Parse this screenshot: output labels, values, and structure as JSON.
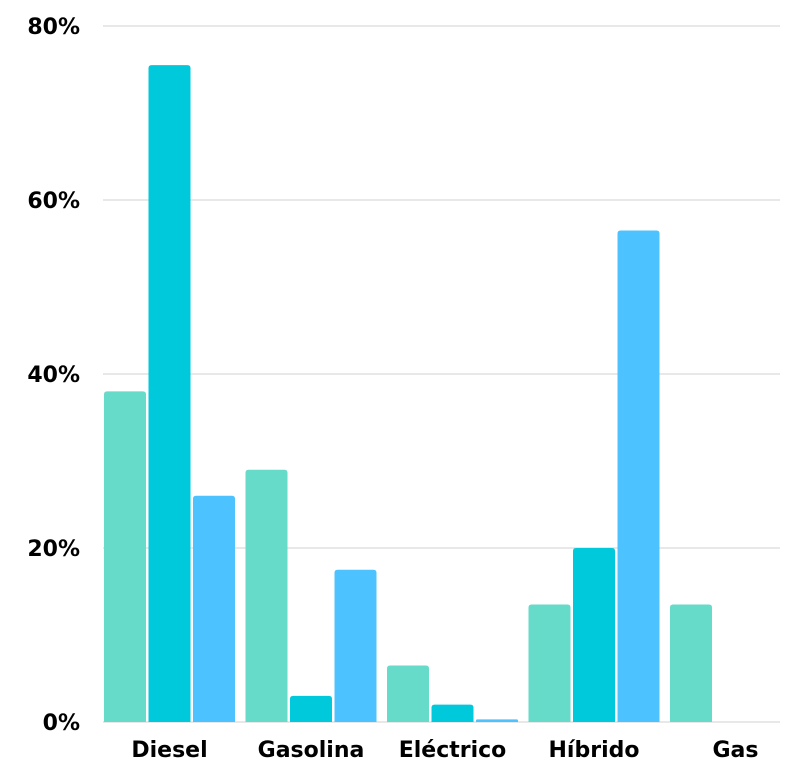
{
  "chart_data": {
    "type": "bar",
    "categories": [
      "Diesel",
      "Gasolina",
      "Eléctrico",
      "Híbrido",
      "Gas"
    ],
    "series": [
      {
        "color": "#66dbc9",
        "values": [
          38,
          29,
          6.5,
          13.5,
          13.5
        ]
      },
      {
        "color": "#00c9dc",
        "values": [
          75.5,
          3,
          2,
          20,
          0
        ]
      },
      {
        "color": "#4cc3ff",
        "values": [
          26,
          17.5,
          0.3,
          56.5,
          0
        ]
      }
    ],
    "ylim": [
      0,
      80
    ],
    "yticks": [
      {
        "value": 0,
        "label": "0%"
      },
      {
        "value": 20,
        "label": "20%"
      },
      {
        "value": 40,
        "label": "40%"
      },
      {
        "value": 60,
        "label": "60%"
      },
      {
        "value": 80,
        "label": "80%"
      }
    ],
    "grid": true,
    "legend": "none"
  }
}
